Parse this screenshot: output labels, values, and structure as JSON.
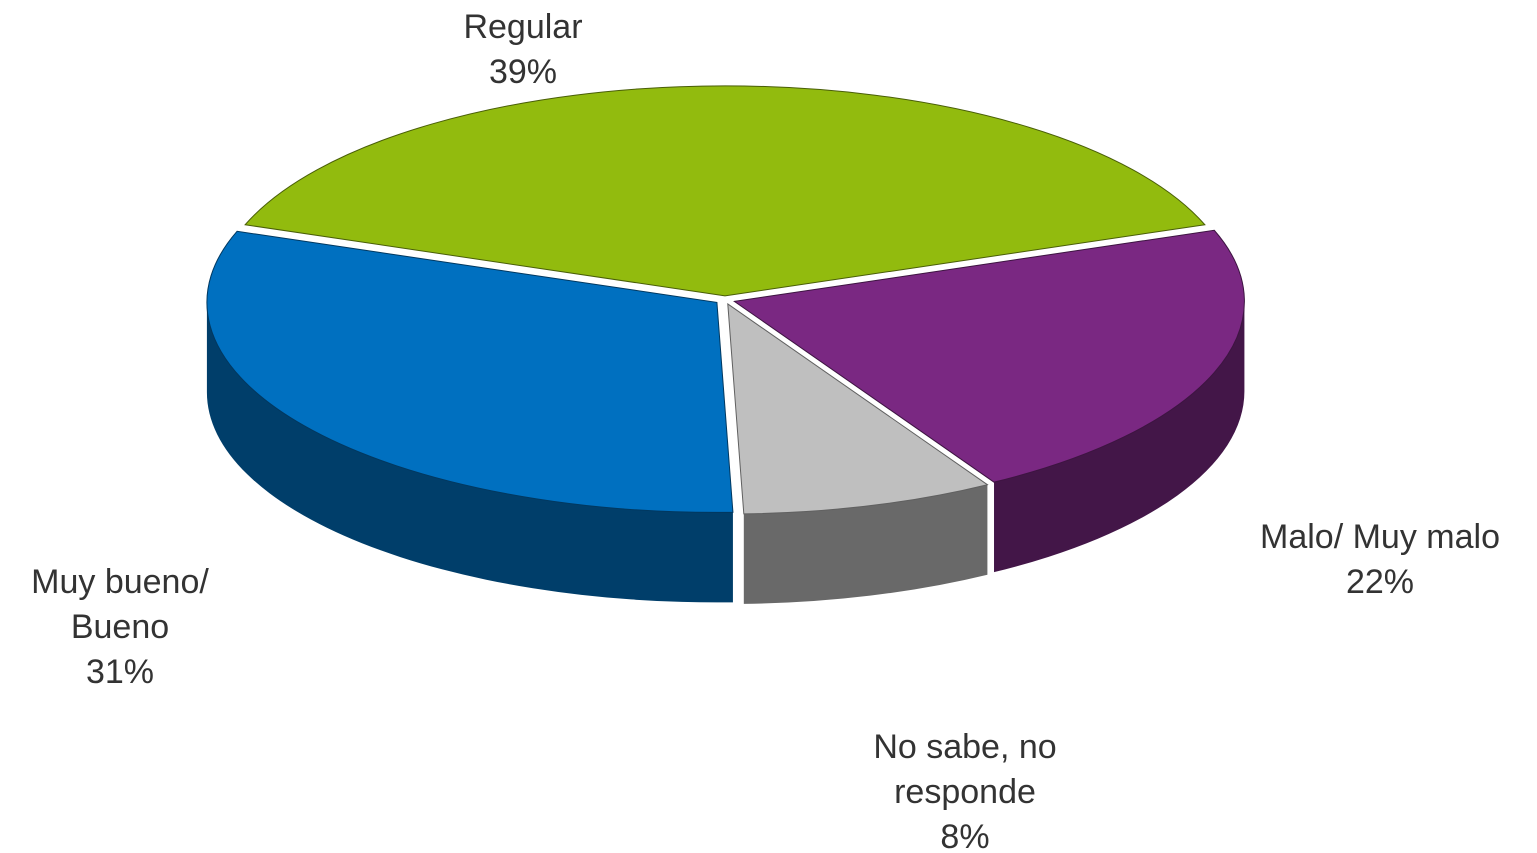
{
  "chart_data": {
    "type": "pie",
    "categories": [
      "Regular",
      "Malo/ Muy malo",
      "No sabe, no responde",
      "Muy bueno/ Bueno"
    ],
    "values": [
      39,
      22,
      8,
      31
    ],
    "value_labels": [
      "39%",
      "22%",
      "8%",
      "31%"
    ],
    "colors": [
      "#92bb0e",
      "#7a2882",
      "#bfbfbf",
      "#0070c0"
    ]
  }
}
